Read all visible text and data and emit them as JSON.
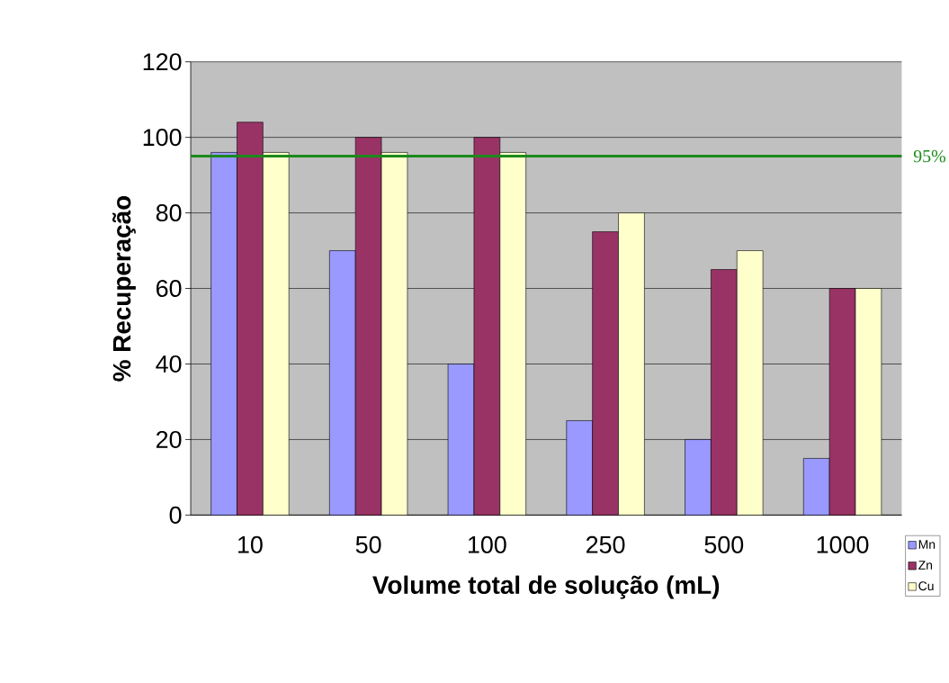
{
  "chart_data": {
    "type": "bar",
    "xlabel": "Volume total de solução (mL)",
    "ylabel": "% Recuperação",
    "categories": [
      "10",
      "50",
      "100",
      "250",
      "500",
      "1000"
    ],
    "series": [
      {
        "name": "Mn",
        "color": "#9999ff",
        "values": [
          96,
          70,
          40,
          25,
          20,
          15
        ]
      },
      {
        "name": "Zn",
        "color": "#993366",
        "values": [
          104,
          100,
          100,
          75,
          65,
          60
        ]
      },
      {
        "name": "Cu",
        "color": "#ffffcc",
        "values": [
          96,
          96,
          96,
          80,
          70,
          60
        ]
      }
    ],
    "ylim": [
      0,
      120
    ],
    "yticks": [
      0,
      20,
      40,
      60,
      80,
      100,
      120
    ],
    "grid": "y",
    "legend": "bottom right",
    "ref_lines": [
      {
        "axis": "y",
        "value": 95,
        "label": "95%",
        "color": "#1b8a1b"
      }
    ]
  }
}
